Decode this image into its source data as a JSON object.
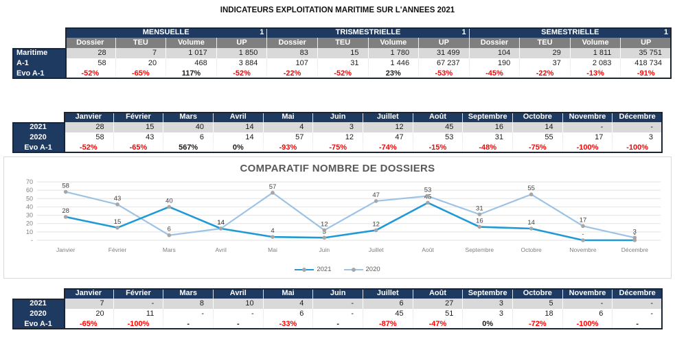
{
  "page_title": "INDICATEURS EXPLOITATION MARITIME SUR L'ANNEES 2021",
  "months": [
    "Janvier",
    "Février",
    "Mars",
    "Avril",
    "Mai",
    "Juin",
    "Juillet",
    "Août",
    "Septembre",
    "Octobre",
    "Novembre",
    "Décembre"
  ],
  "summary_table": {
    "sections": [
      {
        "label": "MENSUELLE",
        "extra": "1"
      },
      {
        "label": "TRISMESTRIELLE",
        "extra": "1"
      },
      {
        "label": "SEMESTRIELLE",
        "extra": "1"
      }
    ],
    "sub_columns": [
      "Dossier",
      "TEU",
      "Volume",
      "UP"
    ],
    "rows": [
      {
        "label": "Maritime",
        "values": [
          "28",
          "7",
          "1 017",
          "1 850",
          "83",
          "15",
          "1 780",
          "31 499",
          "104",
          "29",
          "1 811",
          "35 751"
        ]
      },
      {
        "label": "A-1",
        "values": [
          "58",
          "20",
          "468",
          "3 884",
          "107",
          "31",
          "1 446",
          "67 237",
          "190",
          "37",
          "2 083",
          "418 734"
        ]
      },
      {
        "label": "Evo A-1",
        "values": [
          "-52%",
          "-65%",
          "117%",
          "-52%",
          "-22%",
          "-52%",
          "23%",
          "-53%",
          "-45%",
          "-22%",
          "-13%",
          "-91%"
        ]
      }
    ]
  },
  "dossier_table": {
    "rows": [
      {
        "label": "2021",
        "values": [
          "28",
          "15",
          "40",
          "14",
          "4",
          "3",
          "12",
          "45",
          "16",
          "14",
          "-",
          "-"
        ]
      },
      {
        "label": "2020",
        "values": [
          "58",
          "43",
          "6",
          "14",
          "57",
          "12",
          "47",
          "53",
          "31",
          "55",
          "17",
          "3"
        ]
      },
      {
        "label": "Evo A-1",
        "values": [
          "-52%",
          "-65%",
          "567%",
          "0%",
          "-93%",
          "-75%",
          "-74%",
          "-15%",
          "-48%",
          "-75%",
          "-100%",
          "-100%"
        ]
      }
    ]
  },
  "bottom_table": {
    "rows": [
      {
        "label": "2021",
        "values": [
          "7",
          "-",
          "8",
          "10",
          "4",
          "-",
          "6",
          "27",
          "3",
          "5",
          "-",
          "-"
        ]
      },
      {
        "label": "2020",
        "values": [
          "20",
          "11",
          "-",
          "-",
          "6",
          "-",
          "45",
          "51",
          "3",
          "18",
          "6",
          "-"
        ]
      },
      {
        "label": "Evo A-1",
        "values": [
          "-65%",
          "-100%",
          "-",
          "-",
          "-33%",
          "-",
          "-87%",
          "-47%",
          "0%",
          "-72%",
          "-100%",
          "-"
        ]
      }
    ]
  },
  "chart_data": {
    "type": "line",
    "title": "COMPARATIF NOMBRE DE DOSSIERS",
    "categories": [
      "Janvier",
      "Février",
      "Mars",
      "Avril",
      "Mai",
      "Juin",
      "Juillet",
      "Août",
      "Septembre",
      "Octobre",
      "Novembre",
      "Décembre"
    ],
    "series": [
      {
        "name": "2021",
        "color": "#1f9ad6",
        "values": [
          28,
          15,
          40,
          14,
          4,
          3,
          12,
          45,
          16,
          14,
          0,
          0
        ],
        "labels": [
          "28",
          "15",
          "40",
          "14",
          "4",
          "3",
          "12",
          "45",
          "16",
          "14",
          "-",
          "-"
        ]
      },
      {
        "name": "2020",
        "color": "#9cc3e6",
        "values": [
          58,
          43,
          6,
          14,
          57,
          12,
          47,
          53,
          31,
          55,
          17,
          3
        ],
        "labels": [
          "58",
          "43",
          "6",
          "14",
          "57",
          "12",
          "47",
          "53",
          "31",
          "55",
          "17",
          "3"
        ]
      }
    ],
    "ylim": [
      0,
      70
    ],
    "ytick_labels": [
      "-",
      "10",
      "20",
      "30",
      "40",
      "50",
      "60",
      "70"
    ],
    "grid": true,
    "legend_position": "bottom",
    "marker_color": "#a6a6a6"
  },
  "colors": {
    "header_navy": "#1f3a60",
    "subheader_gray": "#7f7f7f",
    "row_shade": "#d9d9d9",
    "negative_red": "#ff0000",
    "axis_text": "#7f7f7f",
    "grid_line": "#e2e2e2",
    "chart_title": "#595959"
  }
}
